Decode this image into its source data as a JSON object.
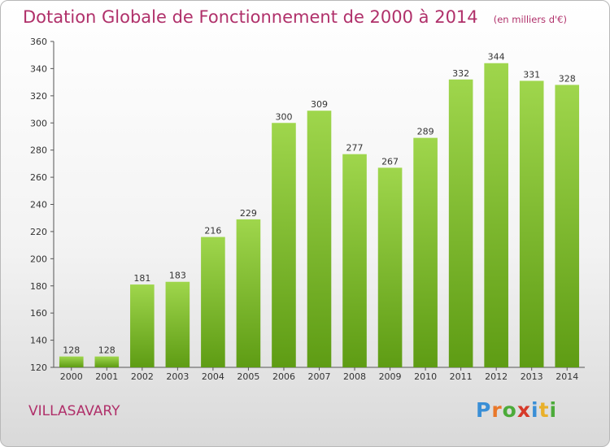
{
  "chart_data": {
    "type": "bar",
    "title": "Dotation Globale de Fonctionnement de 2000 à 2014",
    "subtitle": "(en milliers d'€)",
    "categories": [
      "2000",
      "2001",
      "2002",
      "2003",
      "2004",
      "2005",
      "2006",
      "2007",
      "2008",
      "2009",
      "2010",
      "2011",
      "2012",
      "2013",
      "2014"
    ],
    "values": [
      128,
      128,
      181,
      183,
      216,
      229,
      300,
      309,
      277,
      267,
      289,
      332,
      344,
      331,
      328
    ],
    "ylim": [
      120,
      360
    ],
    "yticks": [
      120,
      140,
      160,
      180,
      200,
      220,
      240,
      260,
      280,
      300,
      320,
      340,
      360
    ],
    "grid": false,
    "bar_color": "#7dbf2e",
    "xlabel": "",
    "ylabel": ""
  },
  "commune": "VILLASAVARY",
  "logo": {
    "letters": [
      "P",
      "r",
      "o",
      "x",
      "i",
      "t",
      "i"
    ],
    "colors": [
      "#3a8fd6",
      "#e9782a",
      "#4cab3a",
      "#d63a2a",
      "#3a8fd6",
      "#e9b02a",
      "#4cab3a"
    ]
  }
}
